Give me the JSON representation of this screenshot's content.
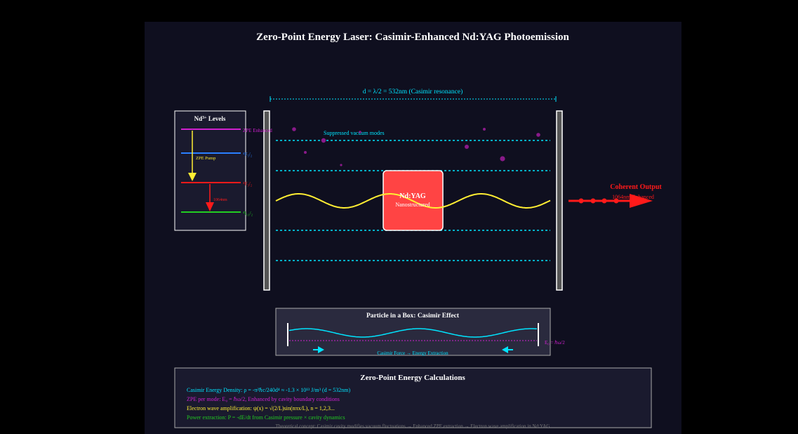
{
  "title": "Zero-Point Energy Laser: Casimir-Enhanced Nd:YAG Photoemission",
  "cavity": {
    "spacing_label": "d = λ/2 = 532nm (Casimir resonance)",
    "suppressed_label": "Suppressed vacuum modes"
  },
  "crystal": {
    "name": "Nd:YAG",
    "subtitle": "Nanostructured"
  },
  "output": {
    "title": "Coherent Output",
    "subtitle": "1064nm Enhanced"
  },
  "levels": {
    "title_main": "Nd",
    "title_sup": "3+",
    "title_rest": " Levels",
    "zpe_label": "ZPE Enhanced",
    "level_labels": [
      "⁴F₅/₂",
      "⁴F₃/₂",
      "⁴I₁₁/₂"
    ],
    "pump_label": "ZPE Pump",
    "emission_label": "1064nm"
  },
  "box": {
    "title": "Particle in a Box: Casimir Effect",
    "energy_label": "E₀ = ℏω/2",
    "force_label": "Casimir Force → Energy Extraction"
  },
  "calculations": {
    "title": "Zero-Point Energy Calculations",
    "lines": [
      "Casimir Energy Density: ρ = -π²ℏc/240d⁴ ≈ -1.3 × 10¹³ J/m³ (d = 532nm)",
      "ZPE per mode: E₀ = ℏω/2, Enhanced by cavity boundary conditions",
      "Electron wave amplification: ψ(x) = √(2/L)sin(nπx/L), n = 1,2,3...",
      "Power extraction: P = -dE/dt from Casimir pressure × cavity dynamics"
    ],
    "footer": "Theoretical concept: Casimir cavity modifies vacuum fluctuations → Enhanced ZPE extraction → Electron wave amplification in Nd:YAG"
  },
  "colors": {
    "background": "#0f0f1f",
    "cyan": "#00e5ff",
    "magenta": "#d020d0",
    "yellow": "#ffee33",
    "red": "#ff1a1a",
    "green": "#22cc22",
    "blue": "#2a7fff",
    "crystal": "#ff4444"
  }
}
